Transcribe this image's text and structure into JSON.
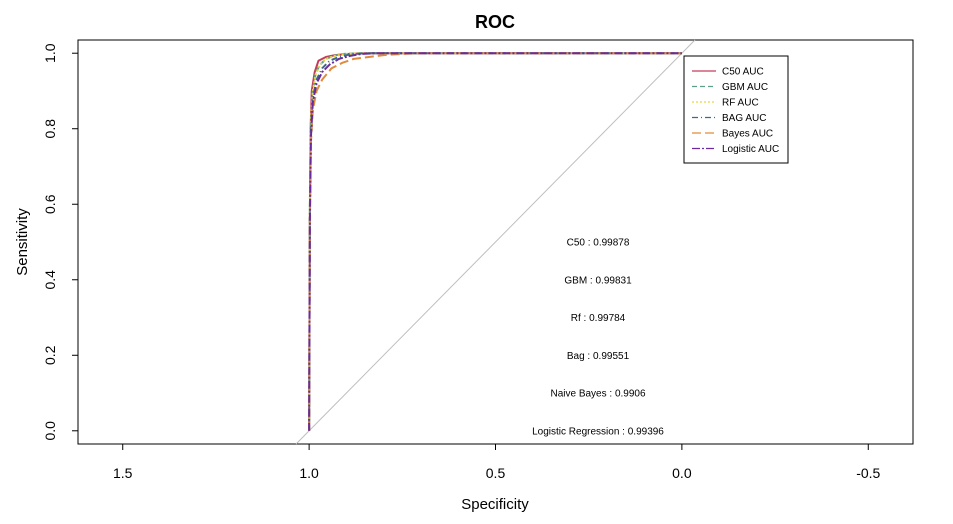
{
  "chart_data": {
    "type": "line",
    "title": "ROC",
    "xlabel": "Specificity",
    "ylabel": "Sensitivity",
    "x_reversed": true,
    "xlim": [
      1.62,
      -0.62
    ],
    "ylim": [
      -0.035,
      1.035
    ],
    "x_ticks": [
      1.5,
      1.0,
      0.5,
      0.0,
      -0.5
    ],
    "x_tick_labels": [
      "1.5",
      "1.0",
      "0.5",
      "0.0",
      "-0.5"
    ],
    "y_ticks": [
      0.0,
      0.2,
      0.4,
      0.6,
      0.8,
      1.0
    ],
    "y_tick_labels": [
      "0.0",
      "0.2",
      "0.4",
      "0.6",
      "0.8",
      "1.0"
    ],
    "reference_line": {
      "from": [
        1.0,
        0.0
      ],
      "to": [
        0.0,
        1.0
      ],
      "color": "#bebebe"
    },
    "legend_position": "top-right",
    "series": [
      {
        "name": "C50 AUC",
        "color": "#c43c5c",
        "dash": "",
        "points": [
          [
            1,
            0
          ],
          [
            0.998,
            0.55
          ],
          [
            0.996,
            0.8
          ],
          [
            0.993,
            0.9
          ],
          [
            0.985,
            0.95
          ],
          [
            0.975,
            0.98
          ],
          [
            0.955,
            0.99
          ],
          [
            0.93,
            0.995
          ],
          [
            0.9,
            0.998
          ],
          [
            0.85,
            1.0
          ],
          [
            0,
            1.0
          ]
        ]
      },
      {
        "name": "GBM AUC",
        "color": "#5f9f8a",
        "dash": "5,3",
        "points": [
          [
            1,
            0
          ],
          [
            0.998,
            0.6
          ],
          [
            0.995,
            0.82
          ],
          [
            0.99,
            0.9
          ],
          [
            0.982,
            0.95
          ],
          [
            0.97,
            0.97
          ],
          [
            0.955,
            0.985
          ],
          [
            0.935,
            0.993
          ],
          [
            0.91,
            0.998
          ],
          [
            0.87,
            1.0
          ],
          [
            0,
            1.0
          ]
        ]
      },
      {
        "name": "RF AUC",
        "color": "#e6d83a",
        "dash": "2,2",
        "points": [
          [
            1,
            0
          ],
          [
            0.998,
            0.62
          ],
          [
            0.995,
            0.83
          ],
          [
            0.99,
            0.9
          ],
          [
            0.982,
            0.945
          ],
          [
            0.97,
            0.97
          ],
          [
            0.955,
            0.985
          ],
          [
            0.935,
            0.992
          ],
          [
            0.91,
            0.997
          ],
          [
            0.87,
            1.0
          ],
          [
            0,
            1.0
          ]
        ]
      },
      {
        "name": "BAG AUC",
        "color": "#3d6b87",
        "dash": "6,3,1,3",
        "points": [
          [
            1,
            0
          ],
          [
            0.998,
            0.58
          ],
          [
            0.995,
            0.8
          ],
          [
            0.99,
            0.88
          ],
          [
            0.98,
            0.93
          ],
          [
            0.965,
            0.96
          ],
          [
            0.945,
            0.98
          ],
          [
            0.92,
            0.99
          ],
          [
            0.89,
            0.997
          ],
          [
            0.85,
            1.0
          ],
          [
            0,
            1.0
          ]
        ]
      },
      {
        "name": "Bayes AUC",
        "color": "#e08a3c",
        "dash": "9,4",
        "points": [
          [
            1,
            0
          ],
          [
            0.998,
            0.55
          ],
          [
            0.996,
            0.75
          ],
          [
            0.99,
            0.85
          ],
          [
            0.98,
            0.9
          ],
          [
            0.965,
            0.93
          ],
          [
            0.94,
            0.96
          ],
          [
            0.91,
            0.975
          ],
          [
            0.88,
            0.985
          ],
          [
            0.84,
            0.99
          ],
          [
            0.8,
            0.995
          ],
          [
            0.75,
            0.998
          ],
          [
            0.7,
            1.0
          ],
          [
            0,
            1.0
          ]
        ]
      },
      {
        "name": "Logistic AUC",
        "color": "#6a2c9c",
        "dash": "8,2,2,2",
        "points": [
          [
            1,
            0
          ],
          [
            0.998,
            0.55
          ],
          [
            0.995,
            0.78
          ],
          [
            0.99,
            0.87
          ],
          [
            0.98,
            0.92
          ],
          [
            0.965,
            0.95
          ],
          [
            0.945,
            0.97
          ],
          [
            0.92,
            0.985
          ],
          [
            0.89,
            0.993
          ],
          [
            0.86,
            0.998
          ],
          [
            0.82,
            1.0
          ],
          [
            0,
            1.0
          ]
        ]
      }
    ],
    "annotations": [
      {
        "text": "C50 :  0.99878",
        "x": 0.225,
        "y": 0.5
      },
      {
        "text": "GBM :  0.99831",
        "x": 0.225,
        "y": 0.4
      },
      {
        "text": "Rf :  0.99784",
        "x": 0.225,
        "y": 0.3
      },
      {
        "text": "Bag :  0.99551",
        "x": 0.225,
        "y": 0.2
      },
      {
        "text": "Naive Bayes :  0.9906",
        "x": 0.225,
        "y": 0.1
      },
      {
        "text": "Logistic Regression :  0.99396",
        "x": 0.225,
        "y": 0.0
      }
    ]
  }
}
